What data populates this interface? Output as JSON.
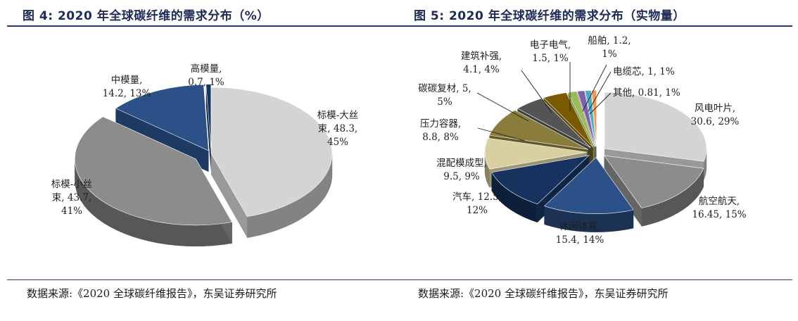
{
  "chart_data": [
    {
      "type": "pie",
      "title": "图 4:  2020 年全球碳纤维的需求分布（%）",
      "source": "数据来源:《2020 全球碳纤维报告》，东吴证券研究所",
      "slices": [
        {
          "label": [
            "标模-大丝",
            "束, 48.3,",
            "45%"
          ],
          "value": 48.3,
          "percent": "45%",
          "color": "#d4d4d4"
        },
        {
          "label": [
            "标模-小丝",
            "束, 43.7,",
            "41%"
          ],
          "value": 43.7,
          "percent": "41%",
          "color": "#8c8c8c"
        },
        {
          "label": [
            "中模量,",
            "14.2, 13%"
          ],
          "value": 14.2,
          "percent": "13%",
          "color": "#2b5188"
        },
        {
          "label": [
            "高模量,",
            "0.7, 1%"
          ],
          "value": 0.7,
          "percent": "1%",
          "color": "#16325e"
        }
      ]
    },
    {
      "type": "pie",
      "title": "图 5:  2020 年全球碳纤维的需求分布（实物量）",
      "source": "数据来源:《2020 全球碳纤维报告》，东吴证券研究所",
      "slices": [
        {
          "label": [
            "风电叶片,",
            "30.6, 29%"
          ],
          "value": 30.6,
          "percent": "29%",
          "color": "#d4d4d4"
        },
        {
          "label": [
            "航空航天,",
            "16.45, 15%"
          ],
          "value": 16.45,
          "percent": "15%",
          "color": "#8c8c8c"
        },
        {
          "label": [
            "休闲体育,",
            "15.4, 14%"
          ],
          "value": 15.4,
          "percent": "14%",
          "color": "#2b5188"
        },
        {
          "label": [
            "汽车, 12.5,",
            "12%"
          ],
          "value": 12.5,
          "percent": "12%",
          "color": "#16325e"
        },
        {
          "label": [
            "混配模成型,",
            "9.5, 9%"
          ],
          "value": 9.5,
          "percent": "9%",
          "color": "#d9d0a2"
        },
        {
          "label": [
            "压力容器,",
            "8.8, 8%"
          ],
          "value": 8.8,
          "percent": "8%",
          "color": "#8a7c3c"
        },
        {
          "label": [
            "碳碳复材, 5,",
            "5%"
          ],
          "value": 5,
          "percent": "5%",
          "color": "#545454"
        },
        {
          "label": [
            "建筑补强,",
            "4.1, 4%"
          ],
          "value": 4.1,
          "percent": "4%",
          "color": "#7a5a00"
        },
        {
          "label": [
            "电子电气,",
            "1.5, 1%"
          ],
          "value": 1.5,
          "percent": "1%",
          "color": "#9bbb59"
        },
        {
          "label": [
            "船舶, 1.2,",
            "1%"
          ],
          "value": 1.2,
          "percent": "1%",
          "color": "#7f5fa8"
        },
        {
          "label": [
            "电缆芯, 1, 1%"
          ],
          "value": 1,
          "percent": "1%",
          "color": "#4bacc6"
        },
        {
          "label": [
            "其他, 0.81, 1%"
          ],
          "value": 0.81,
          "percent": "1%",
          "color": "#f79646"
        }
      ]
    }
  ]
}
